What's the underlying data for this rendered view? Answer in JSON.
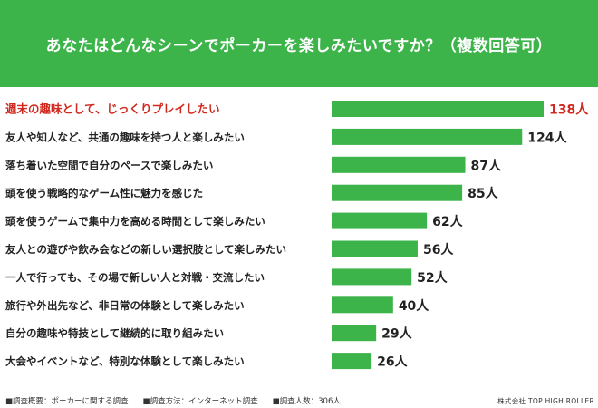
{
  "header": {
    "title": "あなたはどんなシーンでポーカーを楽しみたいですか？（複数回答可）"
  },
  "chart_data": {
    "type": "bar",
    "orientation": "horizontal",
    "title": "あなたはどんなシーンでポーカーを楽しみたいですか？（複数回答可）",
    "unit": "人",
    "xlim": [
      0,
      138
    ],
    "grid": false,
    "categories": [
      "週末の趣味として、じっくりプレイしたい",
      "友人や知人など、共通の趣味を持つ人と楽しみたい",
      "落ち着いた空間で自分のペースで楽しみたい",
      "頭を使う戦略的なゲーム性に魅力を感じた",
      "頭を使うゲームで集中力を高める時間として楽しみたい",
      "友人との遊びや飲み会などの新しい選択肢として楽しみたい",
      "一人で行っても、その場で新しい人と対戦・交流したい",
      "旅行や外出先など、非日常の体験として楽しみたい",
      "自分の趣味や特技として継続的に取り組みたい",
      "大会やイベントなど、特別な体験として楽しみたい"
    ],
    "values": [
      138,
      124,
      87,
      85,
      62,
      56,
      52,
      40,
      29,
      26
    ],
    "value_labels": [
      "138人",
      "124人",
      "87人",
      "85人",
      "62人",
      "56人",
      "52人",
      "40人",
      "29人",
      "26人"
    ],
    "highlight_index": 0,
    "colors": {
      "bar": "#3cb44a",
      "highlight_text": "#d0281e",
      "text": "#222222"
    }
  },
  "footer": {
    "survey_summary": "■調査概要：ポーカーに関する調査",
    "survey_method": "■調査方法：インターネット調査",
    "survey_count": "■調査人数：306人",
    "company": "株式会社 TOP HIGH ROLLER"
  }
}
